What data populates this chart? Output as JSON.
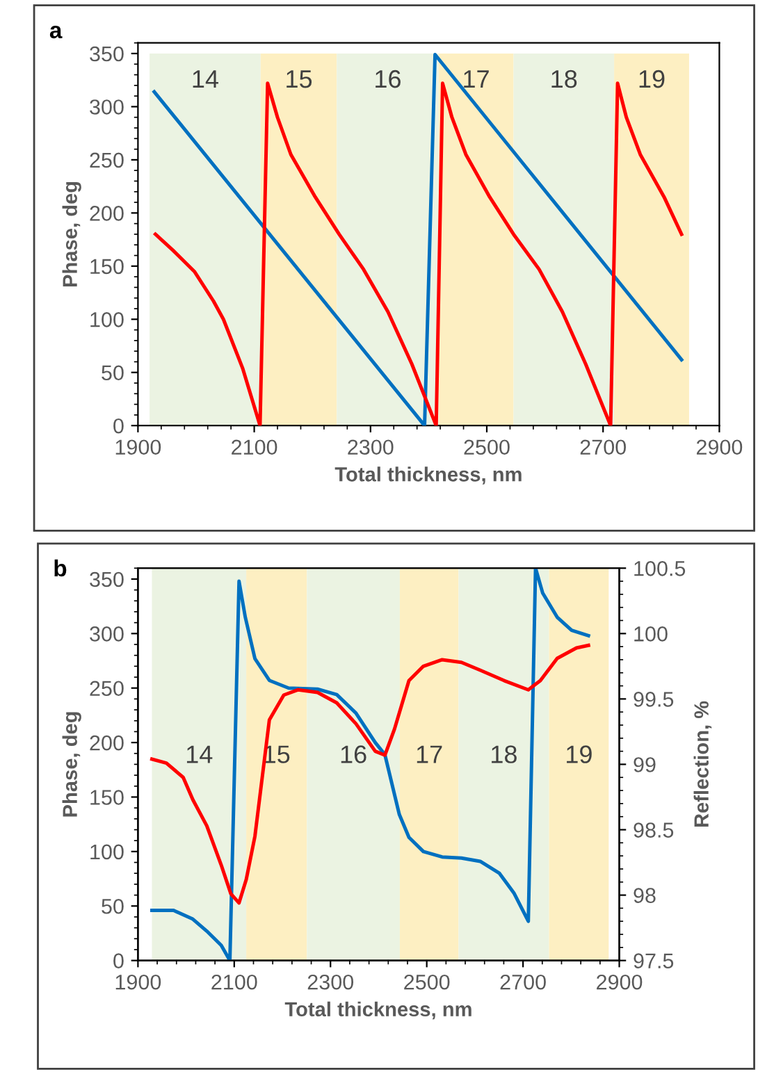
{
  "chart_data": [
    {
      "type": "line",
      "xlabel": "Total thickness, nm",
      "ylabel": "Phase, deg",
      "annotations": [
        "a"
      ],
      "xlim": [
        1900,
        2900
      ],
      "xticks": [
        1900,
        2100,
        2300,
        2500,
        2700,
        2900
      ],
      "ylim": [
        0,
        360
      ],
      "yticks": [
        0,
        50,
        100,
        150,
        200,
        250,
        300,
        350
      ],
      "grid": false,
      "legend": false,
      "bands": [
        {
          "axis": "x",
          "from": 1920,
          "to": 2111,
          "label": "14",
          "color": "#ebf3e2"
        },
        {
          "axis": "x",
          "from": 2111,
          "to": 2242,
          "label": "15",
          "color": "#fdefc2"
        },
        {
          "axis": "x",
          "from": 2242,
          "to": 2417,
          "label": "16",
          "color": "#ebf3e2"
        },
        {
          "axis": "x",
          "from": 2417,
          "to": 2546,
          "label": "17",
          "color": "#fdefc2"
        },
        {
          "axis": "x",
          "from": 2546,
          "to": 2719,
          "label": "18",
          "color": "#ebf3e2"
        },
        {
          "axis": "x",
          "from": 2719,
          "to": 2848,
          "label": "19",
          "color": "#fdefc2"
        }
      ],
      "series": [
        {
          "color": "#0070c0",
          "x": [
            1928,
            2393,
            2411,
            2835
          ],
          "values": [
            314,
            0,
            349,
            62
          ]
        },
        {
          "color": "#ff0000",
          "x": [
            1930,
            1960,
            1997,
            2030,
            2047,
            2080,
            2110,
            2123,
            2140,
            2163,
            2205,
            2246,
            2288,
            2330,
            2371,
            2413,
            2424,
            2440,
            2464,
            2505,
            2546,
            2590,
            2630,
            2670,
            2713,
            2725,
            2740,
            2764,
            2805,
            2835
          ],
          "values": [
            180,
            165,
            145,
            117,
            100,
            54,
            0,
            322,
            290,
            255,
            215,
            180,
            147,
            107,
            58,
            0,
            322,
            290,
            255,
            215,
            180,
            147,
            107,
            58,
            0,
            322,
            290,
            255,
            215,
            180
          ]
        }
      ]
    },
    {
      "type": "line",
      "xlabel": "Total thickness, nm",
      "ylabel": "Phase, deg",
      "y2label": "Reflection, %",
      "annotations": [
        "b"
      ],
      "xlim": [
        1900,
        2900
      ],
      "xticks": [
        1900,
        2100,
        2300,
        2500,
        2700,
        2900
      ],
      "ylim": [
        0,
        360
      ],
      "yticks": [
        0,
        50,
        100,
        150,
        200,
        250,
        300,
        350
      ],
      "y2lim": [
        97.5,
        100.5
      ],
      "y2ticks": [
        97.5,
        98,
        98.5,
        99,
        99.5,
        100,
        100.5
      ],
      "grid": false,
      "legend": false,
      "bands": [
        {
          "axis": "x",
          "from": 1929,
          "to": 2125,
          "label": "14",
          "color": "#ebf3e2"
        },
        {
          "axis": "x",
          "from": 2125,
          "to": 2251,
          "label": "15",
          "color": "#fdefc2"
        },
        {
          "axis": "x",
          "from": 2251,
          "to": 2444,
          "label": "16",
          "color": "#ebf3e2"
        },
        {
          "axis": "x",
          "from": 2444,
          "to": 2566,
          "label": "17",
          "color": "#fdefc2"
        },
        {
          "axis": "x",
          "from": 2566,
          "to": 2754,
          "label": "18",
          "color": "#ebf3e2"
        },
        {
          "axis": "x",
          "from": 2754,
          "to": 2878,
          "label": "19",
          "color": "#fdefc2"
        }
      ],
      "series": [
        {
          "color": "#0070c0",
          "x": [
            1929,
            1974,
            2014,
            2043,
            2073,
            2091,
            2110,
            2123,
            2143,
            2173,
            2213,
            2273,
            2313,
            2353,
            2393,
            2413,
            2443,
            2463,
            2493,
            2532,
            2572,
            2611,
            2651,
            2681,
            2711,
            2726,
            2741,
            2771,
            2801,
            2836
          ],
          "values": [
            46,
            46,
            38,
            27,
            14,
            0,
            348,
            315,
            277,
            257,
            250,
            249,
            244,
            227,
            200,
            189,
            134,
            113,
            100,
            95,
            94,
            91,
            80,
            62,
            36,
            360,
            337,
            315,
            303,
            298
          ]
        },
        {
          "color": "#ff0000",
          "axis": "y2",
          "x": [
            1929,
            1959,
            1994,
            2014,
            2043,
            2073,
            2093,
            2110,
            2125,
            2143,
            2173,
            2203,
            2233,
            2273,
            2313,
            2353,
            2393,
            2413,
            2433,
            2463,
            2493,
            2532,
            2572,
            2611,
            2661,
            2711,
            2736,
            2771,
            2811,
            2836
          ],
          "values": [
            99.04,
            99.01,
            98.9,
            98.73,
            98.53,
            98.23,
            98.01,
            97.94,
            98.12,
            98.45,
            99.34,
            99.53,
            99.57,
            99.55,
            99.47,
            99.31,
            99.1,
            99.07,
            99.27,
            99.64,
            99.75,
            99.8,
            99.78,
            99.72,
            99.64,
            99.57,
            99.64,
            99.81,
            99.89,
            99.91
          ]
        }
      ]
    }
  ]
}
